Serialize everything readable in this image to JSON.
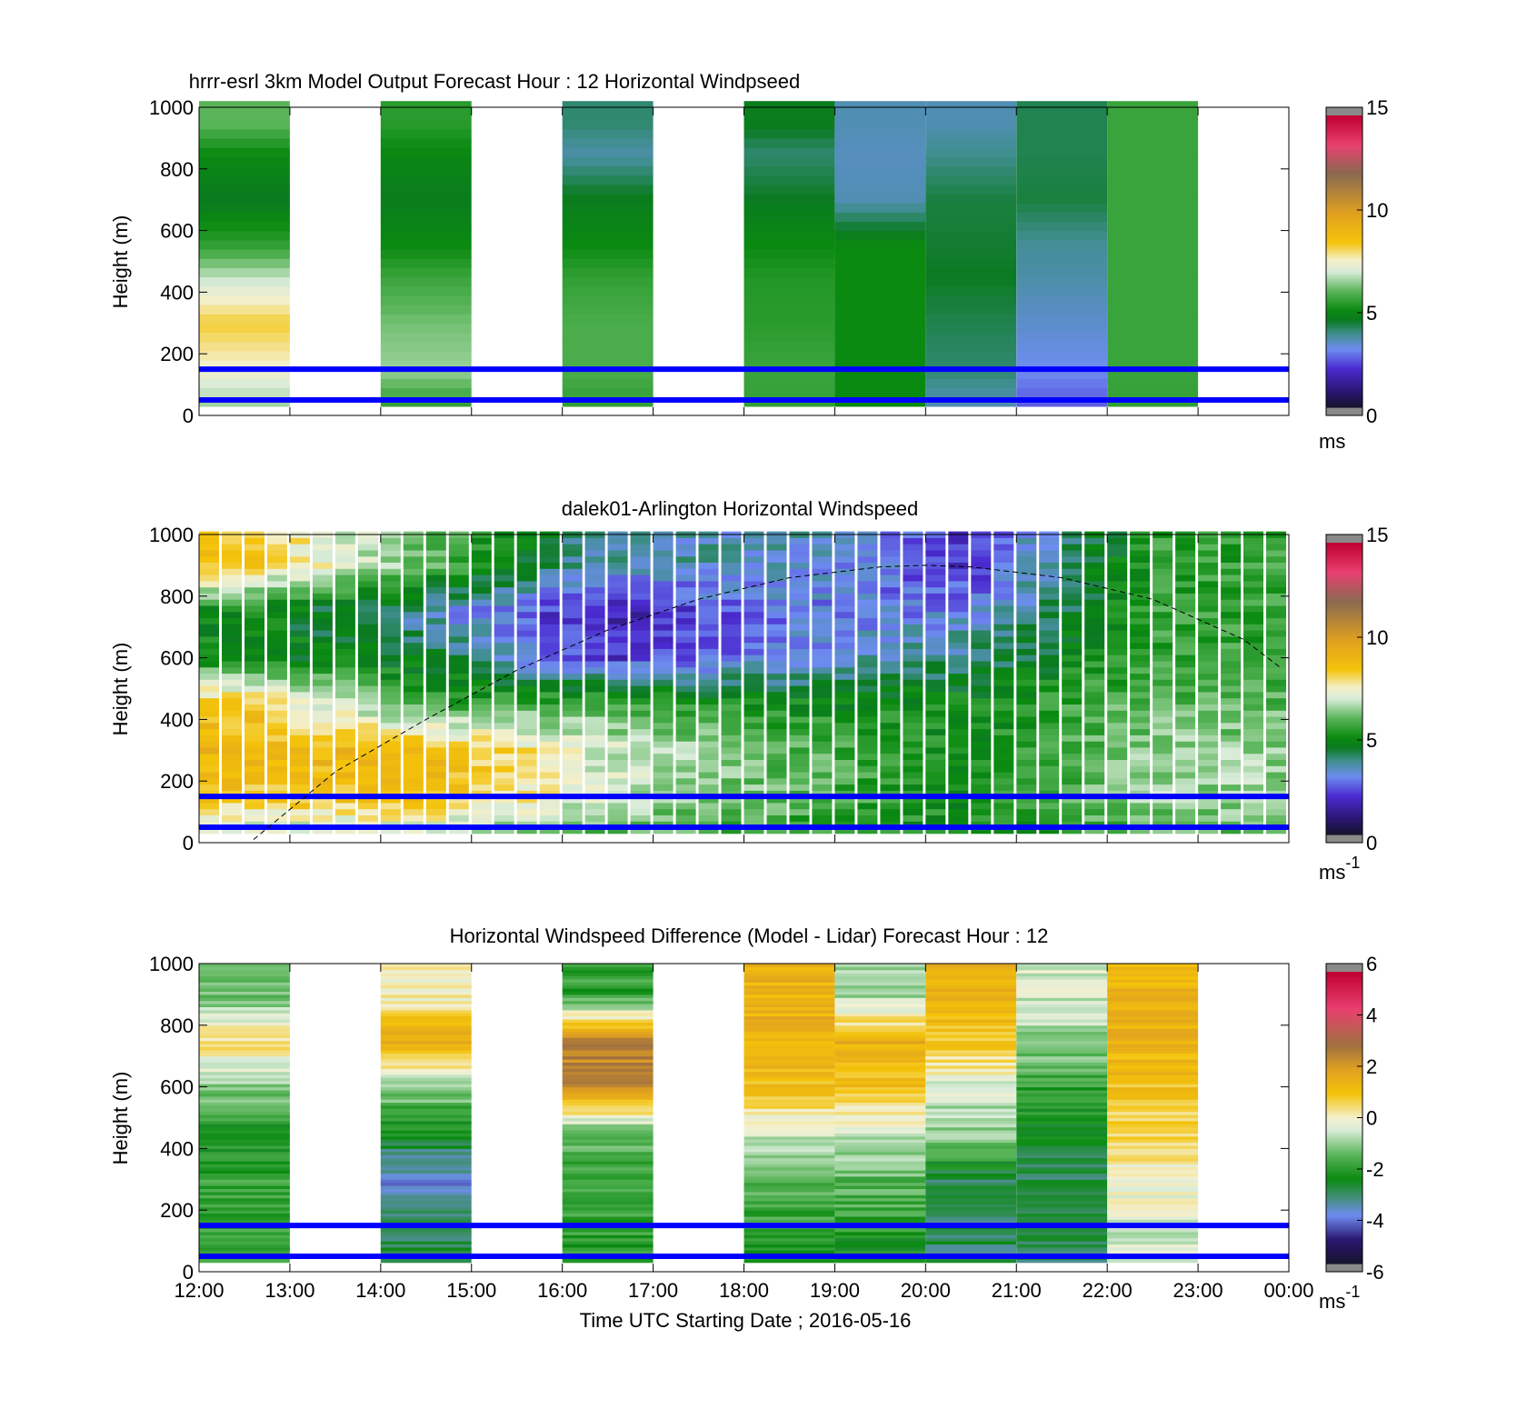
{
  "figure": {
    "xlabel": "Time UTC  Starting Date ; 2016-05-16",
    "time_ticks": [
      "12:00",
      "13:00",
      "14:00",
      "15:00",
      "16:00",
      "17:00",
      "18:00",
      "19:00",
      "20:00",
      "21:00",
      "22:00",
      "23:00",
      "00:00"
    ]
  },
  "chart_data": [
    {
      "type": "heatmap",
      "title": "hrrr-esrl 3km Model Output   Forecast Hour : 12 Horizontal Windpseed",
      "ylabel": "Height (m)",
      "xlim": [
        "12:00",
        "00:00"
      ],
      "ylim": [
        0,
        1000
      ],
      "yticks": [
        "0",
        "200",
        "400",
        "600",
        "800",
        "1000"
      ],
      "colorbar": {
        "min": 0,
        "max": 15,
        "ticks": [
          "0",
          "5",
          "10",
          "15"
        ],
        "unit": "ms"
      },
      "reference_heights_m": [
        50,
        150
      ],
      "column_hours": [
        "12:00",
        "14:00",
        "16:00",
        "18:00",
        "19:00",
        "20:00",
        "21:00",
        "22:00"
      ],
      "missing_hours": [
        "13:00",
        "15:00",
        "17:00",
        "23:00"
      ],
      "approx_windspeed_profiles": [
        {
          "hour": "12:00",
          "heights_m": [
            40,
            150,
            300,
            450,
            550,
            700,
            850,
            950
          ],
          "values": [
            6.5,
            7.5,
            8.3,
            6.8,
            5.5,
            4.5,
            5,
            6
          ]
        },
        {
          "hour": "14:00",
          "heights_m": [
            40,
            150,
            300,
            450,
            550,
            700,
            850,
            950
          ],
          "values": [
            5.5,
            6.5,
            6.2,
            5.6,
            5,
            4.6,
            4.9,
            5.4
          ]
        },
        {
          "hour": "16:00",
          "heights_m": [
            40,
            150,
            300,
            450,
            550,
            700,
            850,
            950
          ],
          "values": [
            5.5,
            5.8,
            5.8,
            5.5,
            5,
            4.6,
            3.6,
            4
          ]
        },
        {
          "hour": "18:00",
          "heights_m": [
            40,
            150,
            300,
            450,
            550,
            700,
            850,
            950
          ],
          "values": [
            5.5,
            5.6,
            5.4,
            5.3,
            5,
            4.5,
            4,
            4.6
          ]
        },
        {
          "hour": "19:00",
          "heights_m": [
            40,
            150,
            300,
            450,
            550,
            700,
            850,
            950
          ],
          "values": [
            5,
            5,
            5,
            5,
            5,
            3.5,
            3.4,
            3.5
          ]
        },
        {
          "hour": "20:00",
          "heights_m": [
            40,
            150,
            300,
            450,
            550,
            700,
            850,
            950
          ],
          "values": [
            3.5,
            4,
            4.2,
            4.5,
            4.4,
            4.3,
            3.8,
            3.5
          ]
        },
        {
          "hour": "21:00",
          "heights_m": [
            40,
            150,
            300,
            450,
            550,
            700,
            850,
            950
          ],
          "values": [
            2.5,
            3,
            3.3,
            3.6,
            3.7,
            4.3,
            4.2,
            4.2
          ]
        },
        {
          "hour": "22:00",
          "heights_m": [
            40,
            150,
            300,
            450,
            550,
            700,
            850,
            950
          ],
          "values": [
            5.5,
            5.6,
            5.6,
            5.6,
            5.6,
            5.6,
            5.6,
            5.6
          ]
        }
      ]
    },
    {
      "type": "heatmap",
      "title": "dalek01-Arlington  Horizontal Windspeed",
      "ylabel": "Height (m)",
      "xlim": [
        "12:00",
        "00:00"
      ],
      "ylim": [
        0,
        1000
      ],
      "yticks": [
        "0",
        "200",
        "400",
        "600",
        "800",
        "1000"
      ],
      "colorbar": {
        "min": 0,
        "max": 15,
        "ticks": [
          "0",
          "5",
          "10",
          "15"
        ],
        "unit": "ms",
        "unit_superscript": "-1"
      },
      "reference_heights_m": [
        50,
        150
      ],
      "boundary_layer_curve": {
        "hours": [
          12.6,
          13.5,
          14.5,
          15.5,
          16.5,
          17.5,
          18.5,
          19.5,
          20.0,
          20.5,
          21.5,
          22.5,
          23.5,
          23.9
        ],
        "heights_m": [
          10,
          230,
          400,
          560,
          690,
          790,
          860,
          895,
          900,
          895,
          860,
          790,
          660,
          570
        ]
      },
      "approx_windspeed_profiles": [
        {
          "hour": "12:30",
          "heights_m": [
            50,
            150,
            300,
            450,
            600,
            750,
            900
          ],
          "values": [
            7,
            8.5,
            9,
            8.5,
            5,
            5,
            8.5
          ]
        },
        {
          "hour": "14:30",
          "heights_m": [
            50,
            150,
            300,
            450,
            600,
            750,
            900
          ],
          "values": [
            7,
            8.8,
            9,
            5.5,
            4.5,
            3.5,
            6
          ]
        },
        {
          "hour": "16:30",
          "heights_m": [
            50,
            150,
            300,
            450,
            600,
            750,
            900
          ],
          "values": [
            6,
            7,
            7,
            6,
            2,
            1.5,
            3.5
          ]
        },
        {
          "hour": "18:30",
          "heights_m": [
            50,
            150,
            300,
            450,
            600,
            750,
            900
          ],
          "values": [
            5.5,
            6,
            6,
            5,
            3,
            2.8,
            3.5
          ]
        },
        {
          "hour": "20:30",
          "heights_m": [
            50,
            150,
            300,
            450,
            600,
            750,
            900
          ],
          "values": [
            5,
            5,
            5,
            5,
            4,
            3,
            2
          ]
        },
        {
          "hour": "22:30",
          "heights_m": [
            50,
            150,
            300,
            450,
            600,
            750,
            900
          ],
          "values": [
            6,
            6.5,
            6.5,
            6,
            5.5,
            5.5,
            5.5
          ]
        }
      ]
    },
    {
      "type": "heatmap",
      "title": "Horizontal Windspeed Difference (Model - Lidar) Forecast Hour : 12",
      "ylabel": "Height (m)",
      "xlabel": "Time UTC  Starting Date ; 2016-05-16",
      "xlim": [
        "12:00",
        "00:00"
      ],
      "ylim": [
        0,
        1000
      ],
      "yticks": [
        "0",
        "200",
        "400",
        "600",
        "800",
        "1000"
      ],
      "colorbar": {
        "min": -6,
        "max": 6,
        "ticks": [
          "-6",
          "-4",
          "-2",
          "0",
          "2",
          "4",
          "6"
        ],
        "unit": "ms",
        "unit_superscript": "-1"
      },
      "reference_heights_m": [
        50,
        150
      ],
      "column_hours": [
        "12:00",
        "14:00",
        "16:00",
        "18:00",
        "19:00",
        "20:00",
        "21:00",
        "22:00"
      ],
      "approx_difference_profiles": [
        {
          "hour": "12:00",
          "heights_m": [
            50,
            150,
            300,
            450,
            600,
            750,
            900
          ],
          "values": [
            -2,
            -2,
            -2,
            -2.5,
            -1,
            0.5,
            -1.5
          ]
        },
        {
          "hour": "14:00",
          "heights_m": [
            50,
            150,
            300,
            450,
            600,
            750,
            900
          ],
          "values": [
            -3,
            -3,
            -4,
            -2.5,
            -1,
            1.5,
            0
          ]
        },
        {
          "hour": "16:00",
          "heights_m": [
            50,
            150,
            300,
            450,
            600,
            750,
            900
          ],
          "values": [
            -2,
            -2,
            -2,
            -1.5,
            2.5,
            2.5,
            -2
          ]
        },
        {
          "hour": "18:00",
          "heights_m": [
            50,
            150,
            300,
            450,
            600,
            750,
            900
          ],
          "values": [
            -2.5,
            -2,
            -1.5,
            -0.5,
            1,
            1.5,
            1.5
          ]
        },
        {
          "hour": "19:00",
          "heights_m": [
            50,
            150,
            300,
            450,
            600,
            750,
            900
          ],
          "values": [
            -2.5,
            -2,
            -1.5,
            -0.5,
            1,
            1.5,
            -1
          ]
        },
        {
          "hour": "20:00",
          "heights_m": [
            50,
            150,
            300,
            450,
            600,
            750,
            900
          ],
          "values": [
            -3,
            -3,
            -3,
            -1,
            -0.5,
            1,
            1.5
          ]
        },
        {
          "hour": "21:00",
          "heights_m": [
            50,
            150,
            300,
            450,
            600,
            750,
            900
          ],
          "values": [
            -3,
            -3,
            -3,
            -2.5,
            -2,
            -1,
            -0.5
          ]
        },
        {
          "hour": "22:00",
          "heights_m": [
            50,
            150,
            300,
            450,
            600,
            750,
            900
          ],
          "values": [
            -0.5,
            -0.5,
            0,
            0.5,
            1,
            1.5,
            1.5
          ]
        }
      ]
    }
  ]
}
